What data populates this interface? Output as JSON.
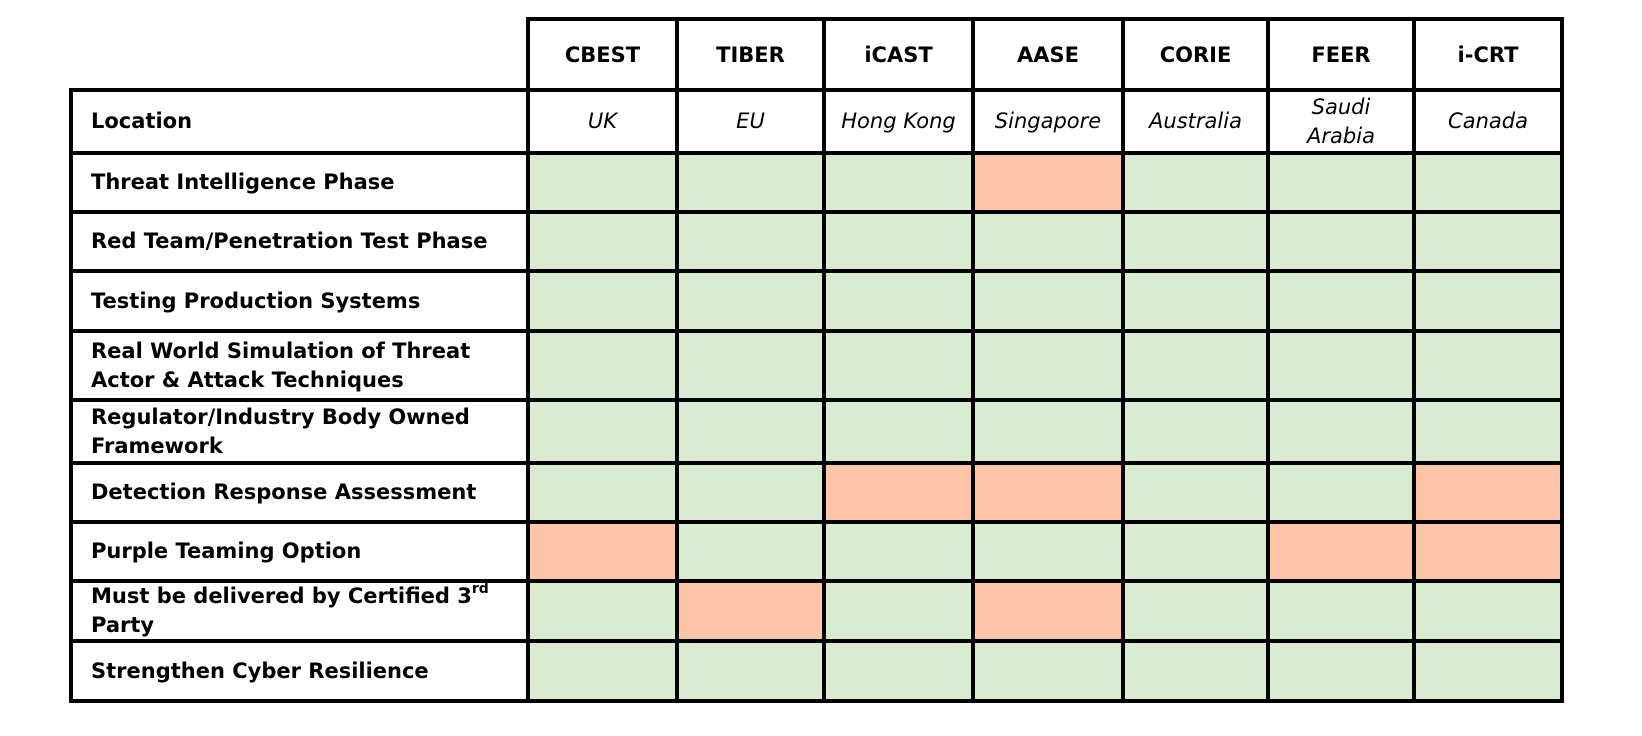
{
  "chart_data": {
    "type": "table",
    "title": "",
    "columns": [
      "CBEST",
      "TIBER",
      "iCAST",
      "AASE",
      "CORIE",
      "FEER",
      "i-CRT"
    ],
    "location_label": "Location",
    "locations": [
      "UK",
      "EU",
      "Hong Kong",
      "Singapore",
      "Australia",
      "Saudi Arabia",
      "Canada"
    ],
    "rows": [
      "Threat Intelligence Phase",
      "Red Team/Penetration Test Phase",
      "Testing Production Systems",
      "Real World Simulation of Threat Actor & Attack Techniques",
      "Regulator/Industry Body Owned Framework",
      "Detection Response Assessment",
      "Purple Teaming Option",
      "Must be delivered by Certified 3rd Party",
      "Strengthen Cyber Resilience"
    ],
    "values": [
      [
        1,
        1,
        1,
        0,
        1,
        1,
        1
      ],
      [
        1,
        1,
        1,
        1,
        1,
        1,
        1
      ],
      [
        1,
        1,
        1,
        1,
        1,
        1,
        1
      ],
      [
        1,
        1,
        1,
        1,
        1,
        1,
        1
      ],
      [
        1,
        1,
        1,
        1,
        1,
        1,
        1
      ],
      [
        1,
        1,
        0,
        0,
        1,
        1,
        0
      ],
      [
        0,
        1,
        1,
        1,
        1,
        0,
        0
      ],
      [
        1,
        0,
        1,
        0,
        1,
        1,
        1
      ],
      [
        1,
        1,
        1,
        1,
        1,
        1,
        1
      ]
    ],
    "value_colors": {
      "1": "#d9ecd2",
      "0": "#fec5a9"
    }
  }
}
